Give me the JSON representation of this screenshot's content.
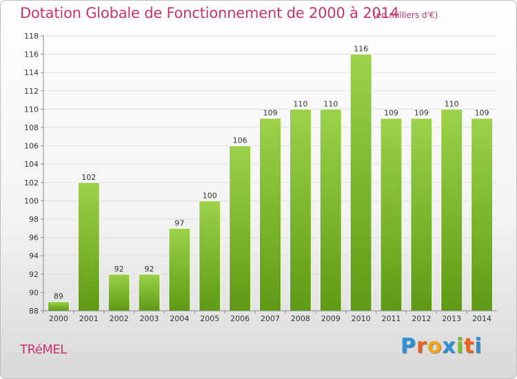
{
  "title": "Dotation Globale de Fonctionnement de 2000 à 2014",
  "unit_label": "(en milliers d'€)",
  "commune": "TRéMEL",
  "logo": {
    "letters": [
      "P",
      "r",
      "o",
      "x",
      "i",
      "t",
      "i"
    ],
    "colors": [
      "#2d8fd6",
      "#e8641c",
      "#f2a516",
      "#2d8fd6",
      "#7bbf2a",
      "#e8641c",
      "#2d8fd6"
    ]
  },
  "colors": {
    "bar_light": "#9dd24a",
    "bar_dark": "#5f9a14",
    "title": "#c8336b"
  },
  "chart_data": {
    "type": "bar",
    "title": "Dotation Globale de Fonctionnement de 2000 à 2014",
    "xlabel": "",
    "ylabel": "",
    "categories": [
      "2000",
      "2001",
      "2002",
      "2003",
      "2004",
      "2005",
      "2006",
      "2007",
      "2008",
      "2009",
      "2010",
      "2011",
      "2012",
      "2013",
      "2014"
    ],
    "values": [
      89,
      102,
      92,
      92,
      97,
      100,
      106,
      109,
      110,
      110,
      116,
      109,
      109,
      110,
      109
    ],
    "ylim": [
      88,
      118
    ],
    "yticks": [
      88,
      90,
      92,
      94,
      96,
      98,
      100,
      102,
      104,
      106,
      108,
      110,
      112,
      114,
      116,
      118
    ],
    "grid": true,
    "legend": "none"
  }
}
